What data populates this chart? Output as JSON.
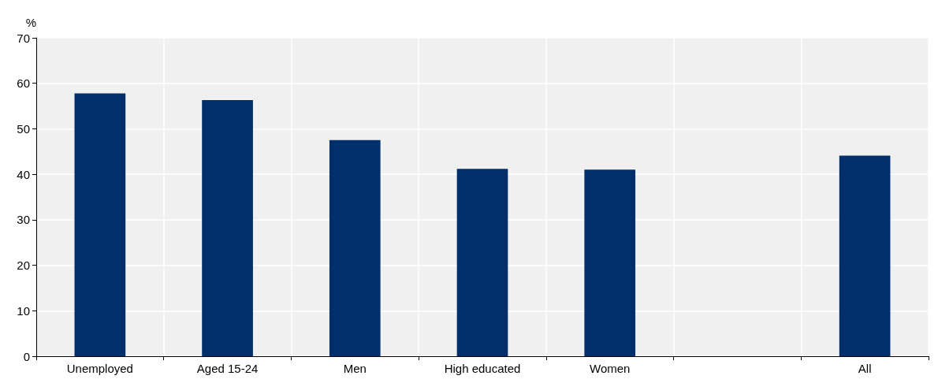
{
  "chart_data": {
    "type": "bar",
    "ylabel": "%",
    "categories": [
      "Unemployed",
      "Aged 15-24",
      "Men",
      "High educated",
      "Women",
      null,
      "All"
    ],
    "values": [
      57.8,
      56.3,
      47.5,
      41.2,
      41.0,
      null,
      44.1
    ],
    "color": "#002f6c",
    "ylim": [
      0,
      70
    ],
    "yticks": [
      0,
      10,
      20,
      30,
      40,
      50,
      60,
      70
    ],
    "grid": true
  }
}
